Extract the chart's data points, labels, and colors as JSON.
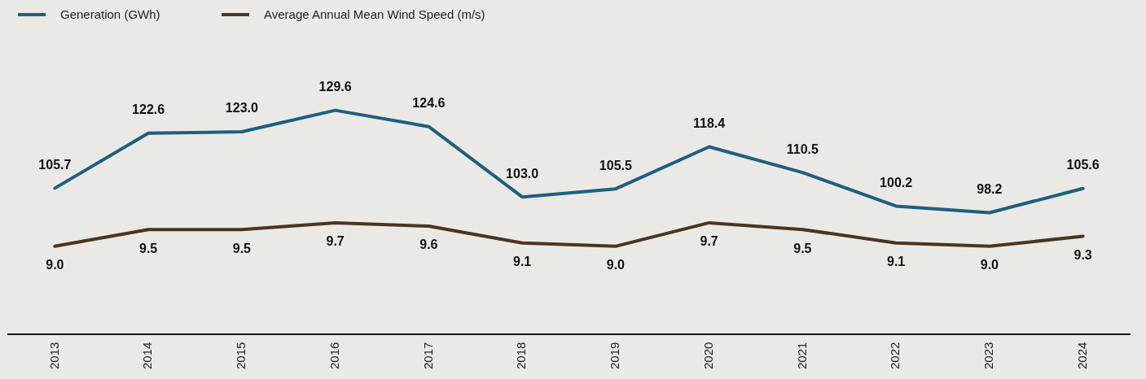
{
  "chart_data": [
    {
      "type": "line",
      "categories": [
        "2013",
        "2014",
        "2015",
        "2016",
        "2017",
        "2018",
        "2019",
        "2020",
        "2021",
        "2022",
        "2023",
        "2024"
      ],
      "series": [
        {
          "name": "Generation (GWh)",
          "color": "#1d5f80",
          "values": [
            105.7,
            122.6,
            123.0,
            129.6,
            124.6,
            103.0,
            105.5,
            118.4,
            110.5,
            100.2,
            98.2,
            105.6
          ],
          "value_labels": [
            "105.7",
            "122.6",
            "123.0",
            "129.6",
            "124.6",
            "103.0",
            "105.5",
            "118.4",
            "110.5",
            "100.2",
            "98.2",
            "105.6"
          ]
        }
      ],
      "legend": "top left",
      "grid": false,
      "marker": "none",
      "line_style": "solid",
      "tick_labels": false
    },
    {
      "type": "line",
      "categories": [
        "2013",
        "2014",
        "2015",
        "2016",
        "2017",
        "2018",
        "2019",
        "2020",
        "2021",
        "2022",
        "2023",
        "2024"
      ],
      "series": [
        {
          "name": "Average Annual Mean Wind Speed (m/s)",
          "color": "#4a3520",
          "values": [
            9.0,
            9.5,
            9.5,
            9.7,
            9.6,
            9.1,
            9.0,
            9.7,
            9.5,
            9.1,
            9.0,
            9.3
          ],
          "value_labels": [
            "9.0",
            "9.5",
            "9.5",
            "9.7",
            "9.6",
            "9.1",
            "9.0",
            "9.7",
            "9.5",
            "9.1",
            "9.0",
            "9.3"
          ]
        }
      ],
      "legend": "top left",
      "grid": false,
      "marker": "none",
      "line_style": "solid",
      "tick_labels": "x"
    }
  ]
}
